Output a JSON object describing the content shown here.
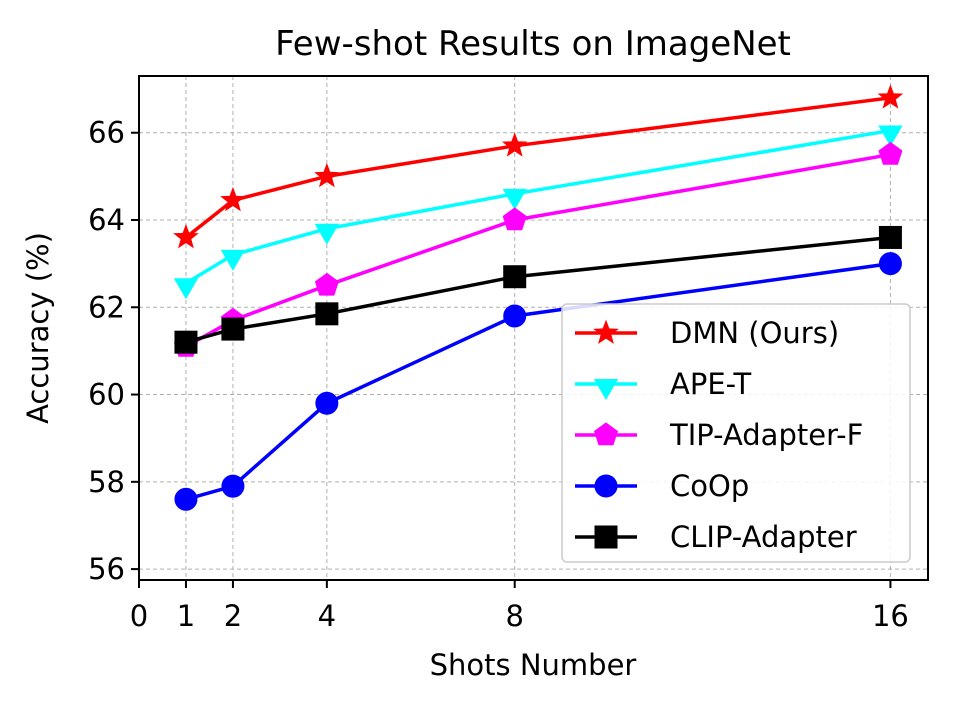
{
  "chart_data": {
    "type": "line",
    "title": "Few-shot Results on ImageNet",
    "xlabel": "Shots Number",
    "ylabel": "Accuracy (%)",
    "x": [
      1,
      2,
      4,
      8,
      16
    ],
    "xticks": [
      "0",
      "1",
      "2",
      "4",
      "8",
      "16"
    ],
    "xtick_values": [
      0,
      1,
      2,
      4,
      8,
      16
    ],
    "yticks": [
      "56",
      "58",
      "60",
      "62",
      "64",
      "66"
    ],
    "ytick_values": [
      56,
      58,
      60,
      62,
      64,
      66
    ],
    "xlim": [
      0,
      16.8
    ],
    "ylim": [
      55.75,
      67.3
    ],
    "grid": true,
    "legend_position": "lower-right",
    "series": [
      {
        "name": "DMN (Ours)",
        "color": "#ff0000",
        "marker": "star",
        "values": [
          63.6,
          64.45,
          65.0,
          65.7,
          66.8
        ]
      },
      {
        "name": "APE-T",
        "color": "#00ffff",
        "marker": "triangle-down",
        "values": [
          62.55,
          63.2,
          63.8,
          64.6,
          66.05
        ]
      },
      {
        "name": "TIP-Adapter-F",
        "color": "#ff00ff",
        "marker": "pentagon",
        "values": [
          61.1,
          61.7,
          62.5,
          64.0,
          65.5
        ]
      },
      {
        "name": "CoOp",
        "color": "#0000ff",
        "marker": "circle",
        "values": [
          57.6,
          57.9,
          59.8,
          61.8,
          63.0
        ]
      },
      {
        "name": "CLIP-Adapter",
        "color": "#000000",
        "marker": "square",
        "values": [
          61.2,
          61.5,
          61.85,
          62.7,
          63.6
        ]
      }
    ]
  }
}
